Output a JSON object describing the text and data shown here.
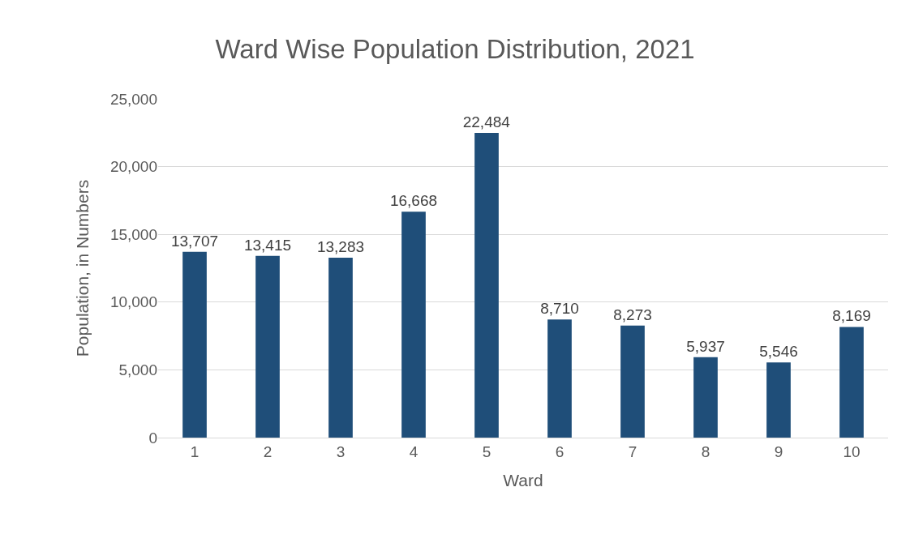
{
  "chart_data": {
    "type": "bar",
    "title": "Ward Wise Population Distribution, 2021",
    "xlabel": "Ward",
    "ylabel": "Population, in Numbers",
    "categories": [
      "1",
      "2",
      "3",
      "4",
      "5",
      "6",
      "7",
      "8",
      "9",
      "10"
    ],
    "values": [
      13707,
      13415,
      13283,
      16668,
      22484,
      8710,
      8273,
      5937,
      5546,
      8169
    ],
    "color": "#1f4e79",
    "ylim": [
      0,
      25000
    ],
    "yticks": [
      0,
      {
        "value": 5000,
        "label": "5,000"
      },
      {
        "value": 10000,
        "label": "10,000"
      },
      {
        "value": 15000,
        "label": "15,000"
      },
      {
        "value": 20000,
        "label": "20,000"
      },
      {
        "value": 25000,
        "label": "25,000"
      }
    ],
    "value_labels": [
      "13,707",
      "13,415",
      "13,283",
      "16,668",
      "22,484",
      "8,710",
      "8,273",
      "5,937",
      "5,546",
      "8,169"
    ],
    "grid": "y"
  }
}
